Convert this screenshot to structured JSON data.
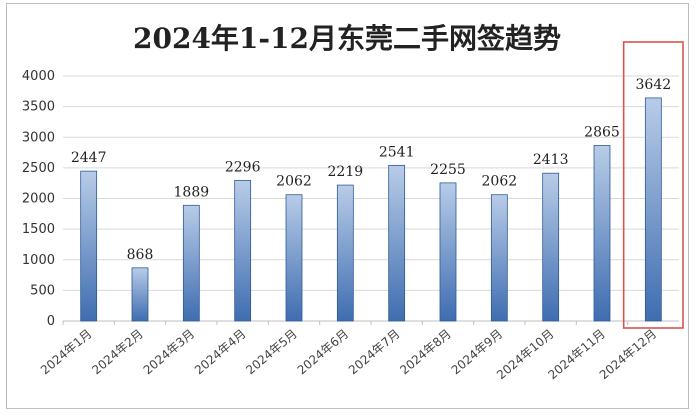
{
  "chart_data": {
    "type": "bar",
    "title": "2024年1-12月东莞二手网签趋势",
    "categories": [
      "2024年1月",
      "2024年2月",
      "2024年3月",
      "2024年4月",
      "2024年5月",
      "2024年6月",
      "2024年7月",
      "2024年8月",
      "2024年9月",
      "2024年10月",
      "2024年11月",
      "2024年12月"
    ],
    "values": [
      2447,
      868,
      1889,
      2296,
      2062,
      2219,
      2541,
      2255,
      2062,
      2413,
      2865,
      3642
    ],
    "ylim": [
      0,
      4000
    ],
    "yticks": [
      0,
      500,
      1000,
      1500,
      2000,
      2500,
      3000,
      3500,
      4000
    ],
    "grid": true,
    "data_labels": true,
    "highlight_category": "2024年12月",
    "colors": {
      "bar_top": "#b8cce8",
      "bar_bottom": "#3f6db0",
      "bar_edge": "#2f5a99",
      "grid": "#d9d9d9",
      "highlight": "#d9534f"
    }
  }
}
